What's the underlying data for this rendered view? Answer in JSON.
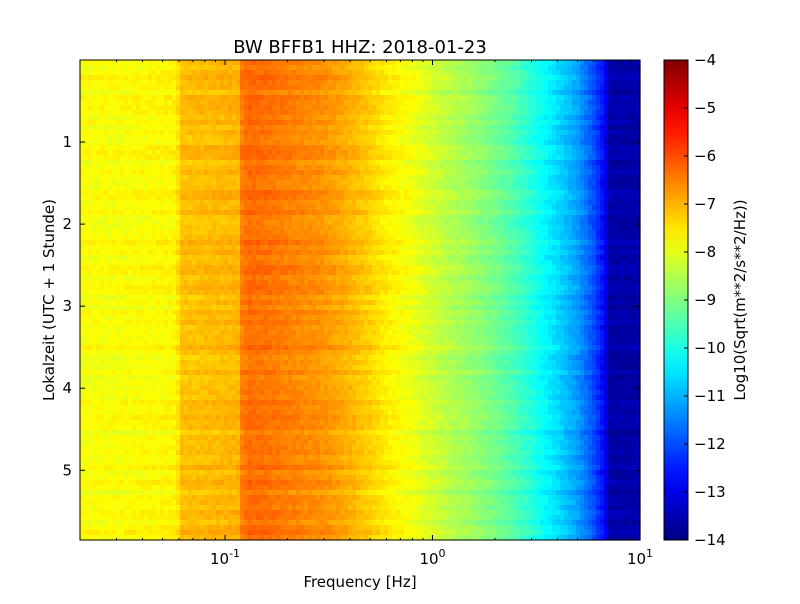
{
  "chart_data": {
    "type": "heatmap",
    "title": "BW BFFB1 HHZ: 2018-01-23",
    "xlabel": "Frequency [Hz]",
    "ylabel": "Lokalzeit (UTC + 1 Stunde)",
    "xscale": "log",
    "xlim": [
      0.02,
      10
    ],
    "ylim": [
      0,
      5.85
    ],
    "y_inverted": true,
    "x_ticks": [
      {
        "value": 0.1,
        "base": "10",
        "exp": "-1"
      },
      {
        "value": 1,
        "base": "10",
        "exp": "0"
      },
      {
        "value": 10,
        "base": "10",
        "exp": "1"
      }
    ],
    "y_ticks": [
      {
        "value": 1,
        "label": "1"
      },
      {
        "value": 2,
        "label": "2"
      },
      {
        "value": 3,
        "label": "3"
      },
      {
        "value": 4,
        "label": "4"
      },
      {
        "value": 5,
        "label": "5"
      }
    ],
    "colormap": "jet",
    "colorbar": {
      "label": "Log10(Sqrt(m**2/s**2/Hz))",
      "range": [
        -14,
        -4
      ],
      "ticks": [
        {
          "value": -4,
          "label": "−4"
        },
        {
          "value": -5,
          "label": "−5"
        },
        {
          "value": -6,
          "label": "−6"
        },
        {
          "value": -7,
          "label": "−7"
        },
        {
          "value": -8,
          "label": "−8"
        },
        {
          "value": -9,
          "label": "−9"
        },
        {
          "value": -10,
          "label": "−10"
        },
        {
          "value": -11,
          "label": "−11"
        },
        {
          "value": -12,
          "label": "−12"
        },
        {
          "value": -13,
          "label": "−13"
        },
        {
          "value": -14,
          "label": "−14"
        }
      ]
    },
    "frequency_profile": {
      "frequency_hz": [
        0.02,
        0.03,
        0.04,
        0.059,
        0.06,
        0.08,
        0.1,
        0.118,
        0.12,
        0.13,
        0.15,
        0.2,
        0.3,
        0.4,
        0.5,
        0.6,
        0.8,
        1.0,
        1.2,
        1.5,
        2.0,
        2.5,
        3.0,
        4.0,
        5.0,
        6.0,
        6.8,
        7.0,
        10.0
      ],
      "value": [
        -7.8,
        -7.8,
        -7.75,
        -7.7,
        -7.15,
        -7.1,
        -7.05,
        -7.0,
        -6.5,
        -6.3,
        -6.35,
        -6.5,
        -6.7,
        -7.0,
        -7.3,
        -7.6,
        -7.9,
        -8.2,
        -8.45,
        -8.7,
        -9.1,
        -9.5,
        -9.9,
        -10.6,
        -11.2,
        -12.0,
        -12.8,
        -13.6,
        -13.6
      ]
    }
  }
}
